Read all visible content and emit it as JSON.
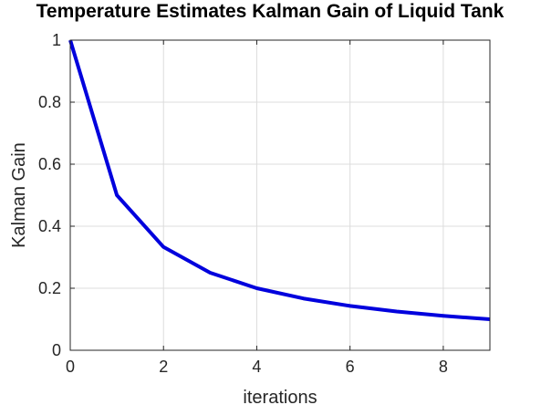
{
  "chart_data": {
    "type": "line",
    "title": "Temperature Estimates Kalman Gain of Liquid Tank",
    "xlabel": "iterations",
    "ylabel": "Kalman Gain",
    "xlim": [
      0,
      9
    ],
    "ylim": [
      0,
      1
    ],
    "xticks": [
      "0",
      "2",
      "4",
      "6",
      "8"
    ],
    "yticks": [
      "0",
      "0.2",
      "0.4",
      "0.6",
      "0.8",
      "1"
    ],
    "grid": true,
    "legend": "none",
    "series": [
      {
        "color": "#0000dd",
        "x": [
          0,
          1,
          2,
          3,
          4,
          5,
          6,
          7,
          8,
          9
        ],
        "values": [
          1.0,
          0.5,
          0.333,
          0.25,
          0.2,
          0.167,
          0.143,
          0.125,
          0.111,
          0.1
        ]
      }
    ]
  }
}
